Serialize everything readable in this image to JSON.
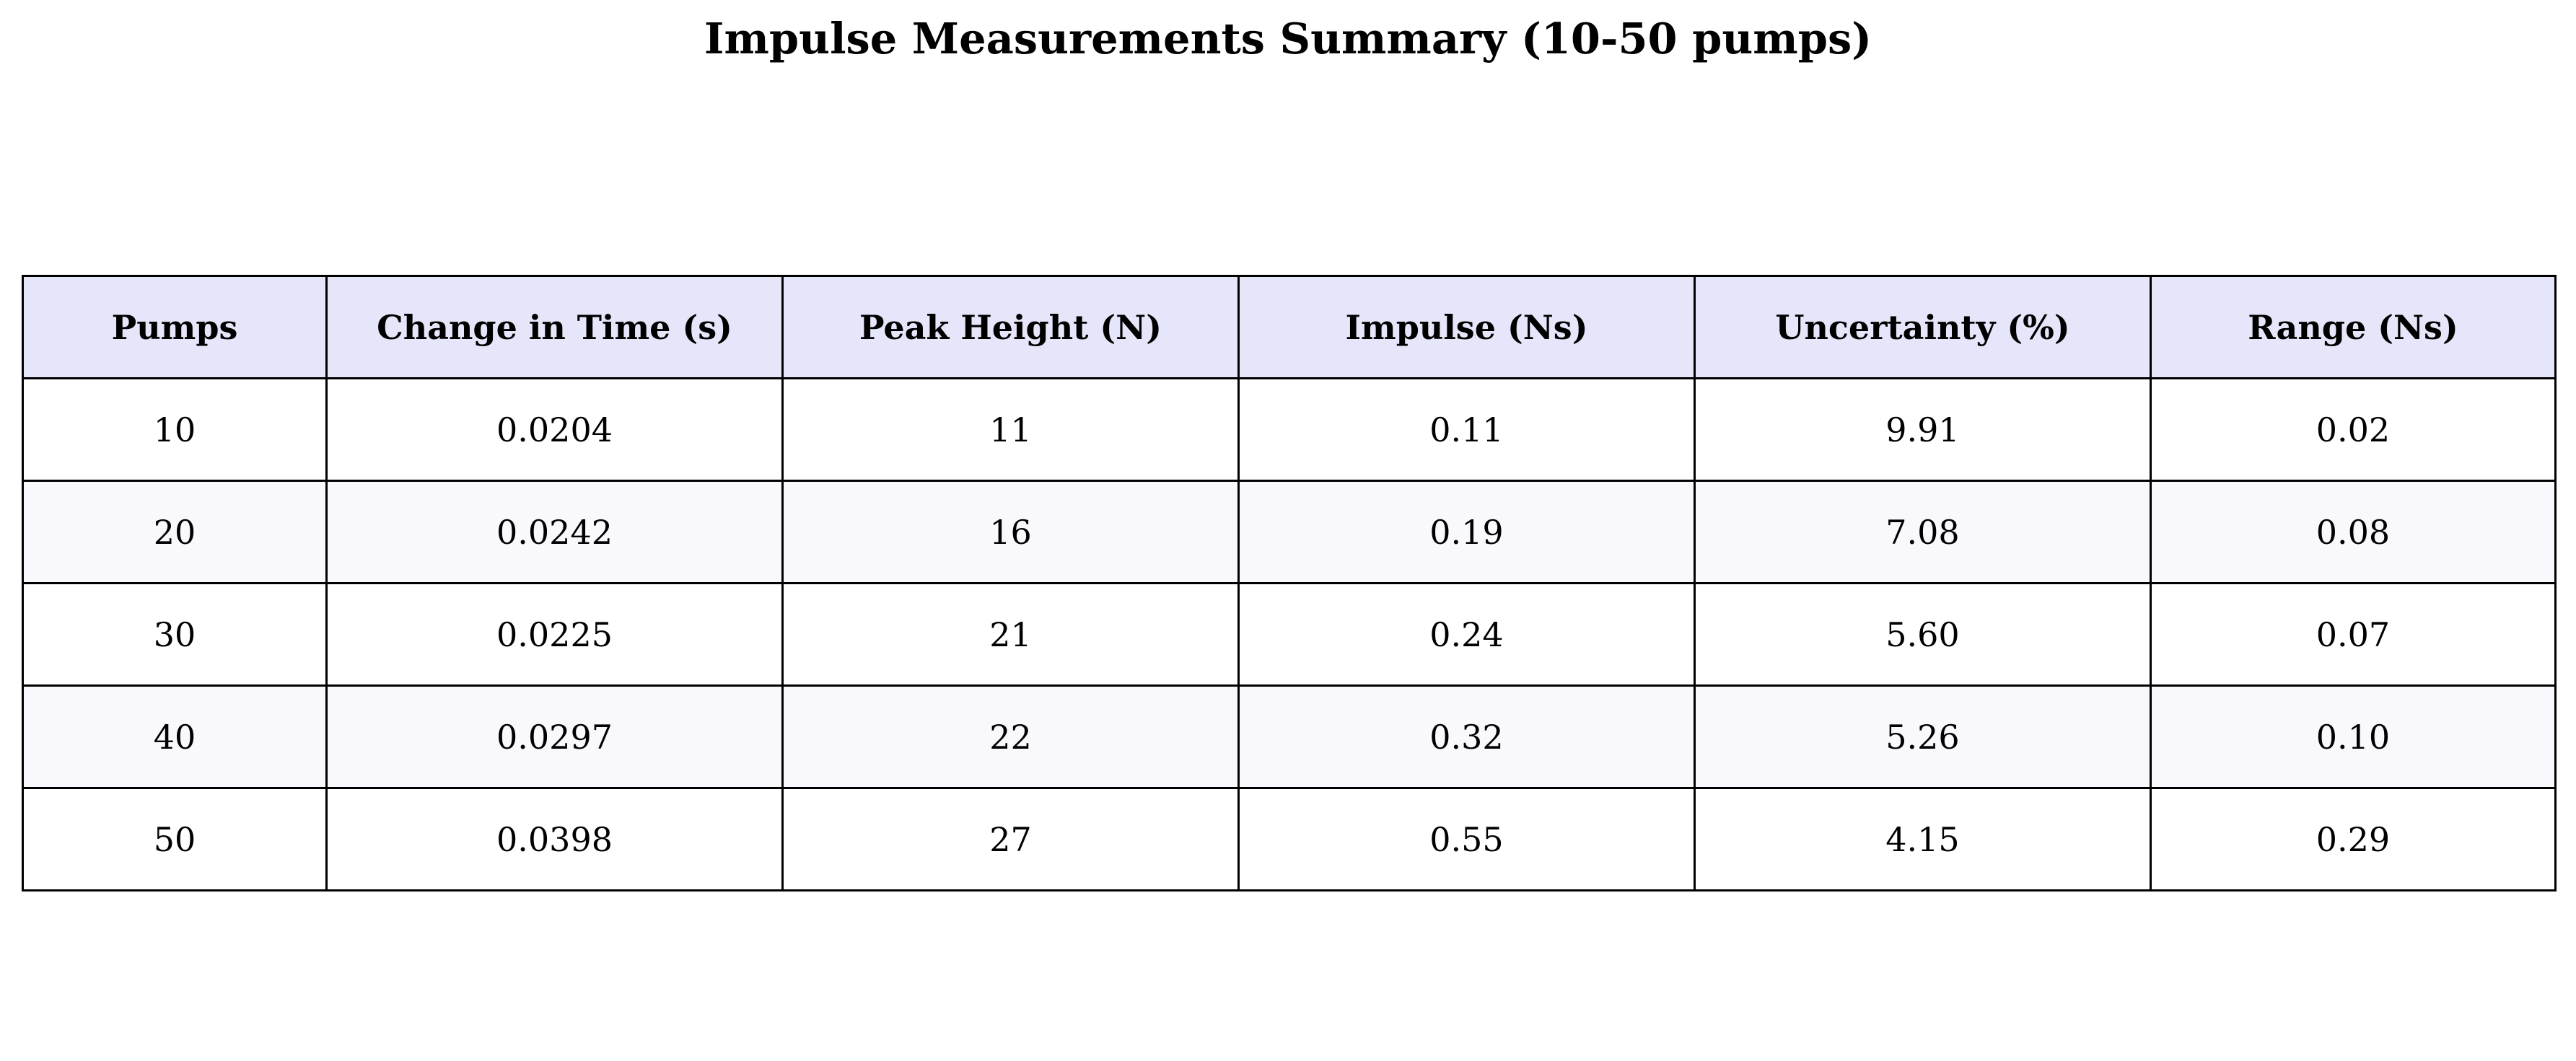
{
  "chart_data": {
    "type": "table",
    "title": "Impulse Measurements Summary (10-50 pumps)",
    "columns": [
      "Pumps",
      "Change in Time (s)",
      "Peak Height (N)",
      "Impulse (Ns)",
      "Uncertainty (%)",
      "Range (Ns)"
    ],
    "rows": [
      [
        "10",
        "0.0204",
        "11",
        "0.11",
        "9.91",
        "0.02"
      ],
      [
        "20",
        "0.0242",
        "16",
        "0.19",
        "7.08",
        "0.08"
      ],
      [
        "30",
        "0.0225",
        "21",
        "0.24",
        "5.60",
        "0.07"
      ],
      [
        "40",
        "0.0297",
        "22",
        "0.32",
        "5.26",
        "0.10"
      ],
      [
        "50",
        "0.0398",
        "27",
        "0.55",
        "4.15",
        "0.29"
      ]
    ],
    "colors": {
      "header_bg": "#e6e6fa",
      "row_alt_bg": "#f8f8fd",
      "row_bg": "#ffffff",
      "border": "#000000"
    }
  }
}
